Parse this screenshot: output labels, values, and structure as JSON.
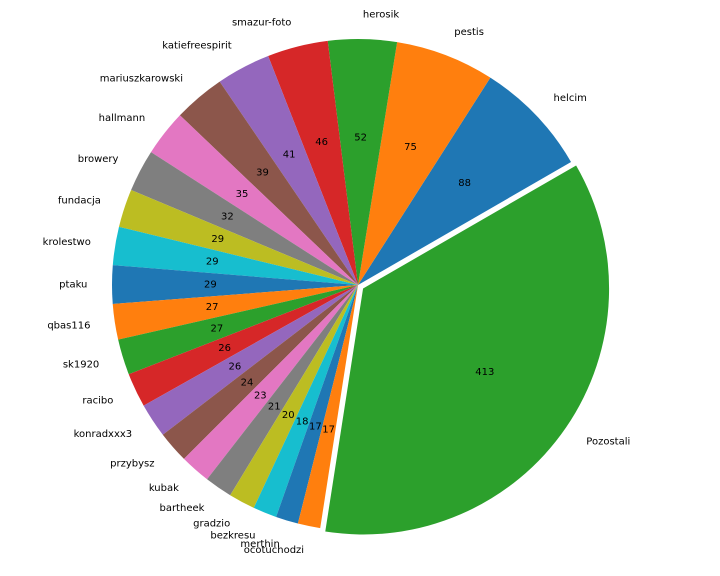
{
  "chart_data": {
    "type": "pie",
    "categories": [
      "helcim",
      "pestis",
      "herosik",
      "smazur-foto",
      "katiefreespirit",
      "mariuszkarowski",
      "hallmann",
      "browery",
      "fundacja",
      "krolestwo",
      "ptaku",
      "qbas116",
      "sk1920",
      "racibo",
      "konradxxx3",
      "przybysz",
      "kubak",
      "bartheek",
      "gradzio",
      "bezkresu",
      "merthin",
      "ocotuchodzi",
      "Pozostali"
    ],
    "values": [
      88,
      75,
      52,
      46,
      41,
      39,
      35,
      32,
      29,
      29,
      29,
      27,
      27,
      26,
      26,
      24,
      23,
      21,
      20,
      18,
      17,
      17,
      413
    ],
    "colors": [
      "#1f77b4",
      "#ff7f0e",
      "#2ca02c",
      "#d62728",
      "#9467bd",
      "#8c564b",
      "#e377c2",
      "#7f7f7f",
      "#bcbd22",
      "#17becf",
      "#1f77b4",
      "#ff7f0e",
      "#2ca02c",
      "#d62728",
      "#9467bd",
      "#8c564b",
      "#e377c2",
      "#7f7f7f",
      "#bcbd22",
      "#17becf",
      "#1f77b4",
      "#ff7f0e",
      "#2ca02c"
    ]
  }
}
